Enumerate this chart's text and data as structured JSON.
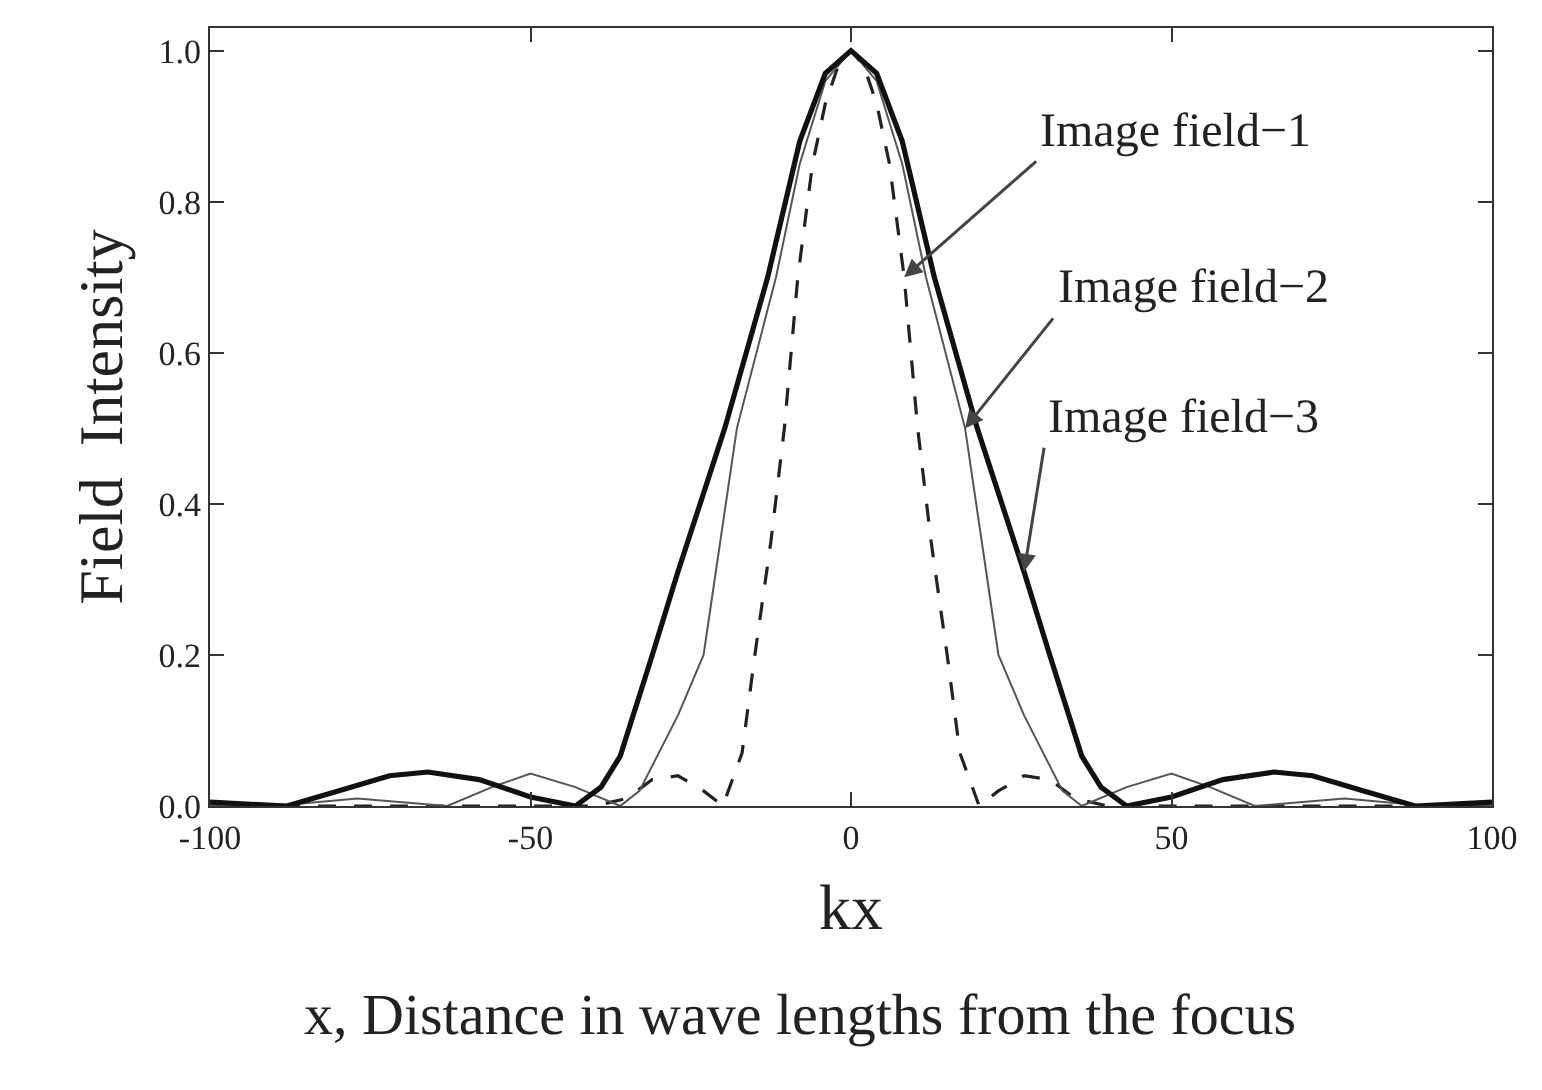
{
  "chart_data": {
    "type": "line",
    "xlabel": "kx",
    "ylabel": "Field  Intensity",
    "xlim": [
      -100,
      100
    ],
    "ylim": [
      0,
      1.03
    ],
    "xticks": [
      -100,
      -50,
      0,
      50,
      100
    ],
    "yticks": [
      {
        "value": 0,
        "label": "0.0"
      },
      {
        "value": 0.2,
        "label": "0.2"
      },
      {
        "value": 0.4,
        "label": "0.4"
      },
      {
        "value": 0.6,
        "label": "0.6"
      },
      {
        "value": 0.8,
        "label": "0.8"
      },
      {
        "value": 1.0,
        "label": "1.0"
      }
    ],
    "marker": "none",
    "series": [
      {
        "color": "#222222",
        "line_style": "dashed",
        "x": [
          -100,
          -80,
          -60,
          -40,
          -35,
          -31,
          -27,
          -23,
          -20,
          -17,
          -15,
          -12.5,
          -10.4,
          -8.3,
          -6,
          -4,
          -2,
          0,
          2,
          4,
          6,
          8.3,
          10.4,
          12.5,
          15,
          17,
          20,
          23,
          27,
          31,
          35,
          40,
          60,
          80,
          100
        ],
        "values": [
          0,
          0,
          0,
          0,
          0.01,
          0.035,
          0.04,
          0.02,
          0,
          0.07,
          0.2,
          0.35,
          0.5,
          0.7,
          0.85,
          0.93,
          0.98,
          1.0,
          0.98,
          0.93,
          0.85,
          0.7,
          0.5,
          0.35,
          0.2,
          0.07,
          0,
          0.02,
          0.04,
          0.035,
          0.01,
          0,
          0,
          0,
          0
        ]
      },
      {
        "color": "#555555",
        "line_style": "solid",
        "x": [
          -100,
          -90,
          -77,
          -63,
          -56,
          -50,
          -43,
          -36,
          -33,
          -30,
          -27,
          -23,
          -17.8,
          -11.7,
          -8,
          -4,
          0,
          4,
          8,
          11.7,
          17.8,
          23,
          27,
          30,
          33,
          36,
          43,
          50,
          56,
          63,
          77,
          90,
          100
        ],
        "values": [
          0,
          0,
          0.01,
          0,
          0.025,
          0.043,
          0.025,
          0,
          0.02,
          0.07,
          0.12,
          0.2,
          0.5,
          0.7,
          0.85,
          0.96,
          1.0,
          0.96,
          0.85,
          0.7,
          0.5,
          0.2,
          0.12,
          0.07,
          0.02,
          0,
          0.025,
          0.043,
          0.025,
          0,
          0.01,
          0,
          0
        ]
      },
      {
        "color": "#111111",
        "line_style": "solid",
        "x": [
          -100,
          -88,
          -80,
          -72,
          -66,
          -58,
          -50,
          -43,
          -39,
          -36,
          -31,
          -27,
          -19.7,
          -13,
          -8,
          -4,
          0,
          4,
          8,
          13,
          19.7,
          27,
          31,
          36,
          39,
          43,
          50,
          58,
          66,
          72,
          80,
          88,
          100
        ],
        "values": [
          0.005,
          0,
          0.02,
          0.04,
          0.045,
          0.035,
          0.012,
          0,
          0.025,
          0.066,
          0.2,
          0.31,
          0.5,
          0.7,
          0.88,
          0.97,
          1.0,
          0.97,
          0.88,
          0.7,
          0.5,
          0.31,
          0.2,
          0.066,
          0.025,
          0,
          0.012,
          0.035,
          0.045,
          0.04,
          0.02,
          0,
          0.005
        ]
      }
    ],
    "annotations": [
      {
        "text": "Image field−1",
        "x": 8.3,
        "y": 0.7
      },
      {
        "text": "Image field−2",
        "x": 17.8,
        "y": 0.5
      },
      {
        "text": "Image field−3",
        "x": 27,
        "y": 0.31
      },
      "x, Distance in wave lengths from the focus"
    ]
  }
}
